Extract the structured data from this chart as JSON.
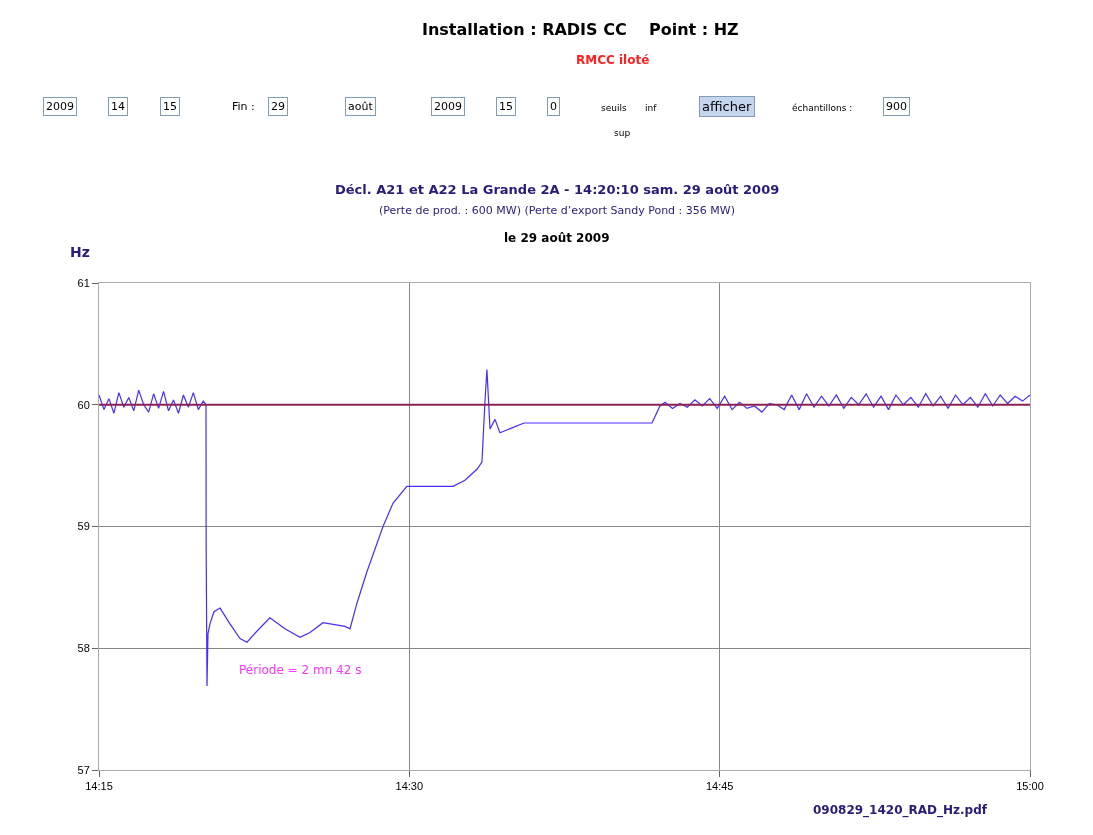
{
  "chart_data": {
    "type": "line",
    "title": "Installation : RADIS CC    Point : HZ",
    "subtitle": "RMCC iloté",
    "ylabel": "Hz",
    "annotations": [
      "Décl. A21 et A22 La Grande 2A - 14:20:10 sam. 29 août 2009",
      "(Perte de prod. : 600 MW) (Perte d’export Sandy Pond : 356 MW)",
      "le 29 août 2009",
      "Période = 2 mn 42 s",
      "090829_1420_RAD_Hz.pdf",
      "2009",
      "14",
      "15",
      "Fin :",
      "29",
      "août",
      "2009",
      "15",
      "0",
      "seuils",
      "inf",
      "sup",
      "afficher",
      "échantillons :",
      "900"
    ],
    "series": [
      {
        "color": "#4b2bff",
        "x": [
          14.25,
          14.254,
          14.258,
          14.262,
          14.266,
          14.27,
          14.274,
          14.278,
          14.282,
          14.286,
          14.29,
          14.294,
          14.298,
          14.302,
          14.306,
          14.31,
          14.314,
          14.318,
          14.322,
          14.326,
          14.33,
          14.334,
          14.3362,
          14.3363,
          14.337,
          14.3378,
          14.3394,
          14.3426,
          14.3475,
          14.3555,
          14.3636,
          14.3692,
          14.3781,
          14.3877,
          14.3998,
          14.4119,
          14.42,
          14.4304,
          14.4482,
          14.4522,
          14.4578,
          14.4659,
          14.4788,
          14.4868,
          14.498,
          14.5352,
          14.5448,
          14.5545,
          14.5585,
          14.5609,
          14.5625,
          14.565,
          14.569,
          14.573,
          14.5827,
          14.5924,
          14.6955,
          14.7019,
          14.706,
          14.712,
          14.718,
          14.724,
          14.73,
          14.736,
          14.742,
          14.748,
          14.754,
          14.76,
          14.766,
          14.772,
          14.778,
          14.784,
          14.79,
          14.796,
          14.802,
          14.808,
          14.814,
          14.82,
          14.826,
          14.832,
          14.838,
          14.844,
          14.85,
          14.856,
          14.862,
          14.868,
          14.874,
          14.88,
          14.886,
          14.892,
          14.898,
          14.904,
          14.91,
          14.916,
          14.922,
          14.928,
          14.934,
          14.94,
          14.946,
          14.952,
          14.958,
          14.964,
          14.97,
          14.976,
          14.982,
          14.988,
          14.994,
          15.0
        ],
        "values": [
          60.08,
          59.96,
          60.05,
          59.93,
          60.1,
          59.98,
          60.06,
          59.95,
          60.12,
          60.0,
          59.94,
          60.09,
          59.97,
          60.11,
          59.95,
          60.04,
          59.93,
          60.08,
          59.98,
          60.1,
          59.96,
          60.03,
          60.0,
          58.87,
          57.69,
          58.12,
          58.2,
          58.3,
          58.33,
          58.2,
          58.08,
          58.05,
          58.15,
          58.25,
          58.16,
          58.09,
          58.13,
          58.21,
          58.18,
          58.16,
          58.37,
          58.63,
          59.0,
          59.19,
          59.33,
          59.33,
          59.38,
          59.47,
          59.53,
          60.02,
          60.29,
          59.8,
          59.88,
          59.77,
          59.81,
          59.85,
          59.85,
          59.99,
          60.02,
          59.97,
          60.01,
          59.98,
          60.04,
          59.99,
          60.05,
          59.97,
          60.07,
          59.96,
          60.02,
          59.97,
          59.99,
          59.94,
          60.01,
          60.0,
          59.96,
          60.08,
          59.96,
          60.09,
          59.98,
          60.07,
          59.99,
          60.08,
          59.97,
          60.06,
          60.0,
          60.09,
          59.98,
          60.07,
          59.96,
          60.08,
          60.0,
          60.06,
          59.98,
          60.09,
          59.99,
          60.07,
          59.97,
          60.08,
          60.0,
          60.06,
          59.98,
          60.09,
          59.99,
          60.08,
          60.01,
          60.07,
          60.03,
          60.08
        ]
      }
    ],
    "xlim": [
      14.25,
      15.0
    ],
    "xticks": [
      {
        "value": 14.25,
        "label": "14:15"
      },
      {
        "value": 14.5,
        "label": "14:30"
      },
      {
        "value": 14.75,
        "label": "14:45"
      },
      {
        "value": 15.0,
        "label": "15:00"
      }
    ],
    "ylim": [
      57,
      61
    ],
    "yticks": [
      57,
      58,
      59,
      60,
      61
    ],
    "ref_lines": [
      {
        "axis": "y",
        "value": 60,
        "color": "#8b2252"
      }
    ],
    "grid": true,
    "marker": "none",
    "line_style": "solid"
  }
}
